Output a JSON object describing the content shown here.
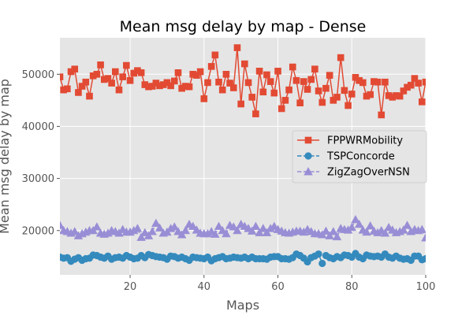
{
  "chart_data": {
    "type": "line",
    "title": "Mean msg delay by map - Dense",
    "xlabel": "Maps",
    "ylabel": "Mean msg delay by map",
    "xlim": [
      1,
      100
    ],
    "ylim": [
      11500,
      57000
    ],
    "xticks": [
      20,
      40,
      60,
      80,
      100
    ],
    "yticks": [
      20000,
      30000,
      40000,
      50000
    ],
    "grid": true,
    "legend": "center-right",
    "colors": {
      "background": "#E5E5E5",
      "grid": "#FFFFFF"
    },
    "series": [
      {
        "name": "FPPWRMobility",
        "color": "#E24A33",
        "marker": "square",
        "linestyle": "solid",
        "values": [
          49500,
          47000,
          47200,
          50500,
          51000,
          46500,
          47700,
          48500,
          45800,
          49700,
          50000,
          51800,
          49000,
          49200,
          48300,
          50500,
          47000,
          49500,
          51700,
          48800,
          50200,
          50700,
          50300,
          48000,
          47600,
          47700,
          48300,
          47800,
          48000,
          48400,
          47800,
          48700,
          50300,
          47300,
          47700,
          47600,
          50000,
          49800,
          50500,
          45300,
          48400,
          51500,
          53700,
          48500,
          47000,
          50000,
          48300,
          47400,
          55100,
          44300,
          52000,
          48400,
          45600,
          42400,
          50600,
          46600,
          49900,
          48600,
          46400,
          50600,
          43400,
          45000,
          47000,
          51400,
          48800,
          44500,
          48600,
          47100,
          49000,
          51000,
          46800,
          44600,
          47300,
          49800,
          45000,
          45600,
          53200,
          46900,
          44000,
          46200,
          49400,
          48800,
          48400,
          45800,
          46100,
          48600,
          48500,
          42200,
          48500,
          45900,
          45600,
          45900,
          45800,
          46800,
          47500,
          47900,
          49200,
          48300,
          44700,
          48500
        ]
      },
      {
        "name": "TSPConcorde",
        "color": "#348ABD",
        "marker": "circle",
        "linestyle": "dashed",
        "values": [
          14900,
          14700,
          14800,
          14100,
          14500,
          14800,
          14300,
          14600,
          14700,
          15300,
          15200,
          14900,
          14700,
          15100,
          14500,
          14800,
          14900,
          14700,
          15200,
          14900,
          14600,
          14700,
          15200,
          14800,
          15400,
          15200,
          15000,
          14900,
          14800,
          14500,
          15100,
          15000,
          14700,
          14900,
          14600,
          14300,
          14900,
          14800,
          14700,
          14600,
          14900,
          14200,
          14600,
          14800,
          15000,
          14600,
          14700,
          14900,
          14800,
          14700,
          14900,
          14600,
          14900,
          14600,
          14600,
          14600,
          14500,
          14900,
          15000,
          15000,
          14600,
          14600,
          14500,
          14800,
          15500,
          15200,
          14700,
          14000,
          14800,
          15100,
          15500,
          13700,
          15200,
          14800,
          14600,
          15000,
          14800,
          15300,
          15200,
          14900,
          15600,
          14900,
          14600,
          15300,
          15100,
          15000,
          15100,
          14900,
          15500,
          14900,
          14700,
          15100,
          14700,
          14500,
          14600,
          14300,
          15100,
          15100,
          14400,
          14600
        ]
      },
      {
        "name": "ZigZagOverNSN",
        "color": "#988ED5",
        "marker": "triangle",
        "linestyle": "dashed",
        "values": [
          21000,
          20000,
          19800,
          19500,
          19800,
          19000,
          19400,
          19700,
          20000,
          20000,
          20700,
          19500,
          19300,
          19500,
          20000,
          19800,
          19500,
          20200,
          19700,
          19700,
          20000,
          20400,
          18700,
          19600,
          19000,
          19800,
          21400,
          20500,
          19500,
          19700,
          20400,
          20700,
          19800,
          19200,
          20000,
          21200,
          20800,
          20100,
          19500,
          19400,
          19400,
          19800,
          19300,
          20800,
          20000,
          19400,
          21000,
          20700,
          20000,
          21200,
          20800,
          20400,
          19900,
          20800,
          19600,
          20400,
          19600,
          20400,
          20800,
          20200,
          19900,
          19600,
          19500,
          19700,
          19900,
          19900,
          19700,
          20200,
          19800,
          19400,
          19400,
          19200,
          19900,
          19000,
          19800,
          18800,
          20400,
          20200,
          20100,
          20600,
          22100,
          21200,
          20100,
          19700,
          20900,
          19900,
          19600,
          20000,
          19500,
          20600,
          20100,
          19600,
          19800,
          20100,
          21000,
          19800,
          20200,
          20000,
          20200,
          18600
        ]
      }
    ]
  }
}
